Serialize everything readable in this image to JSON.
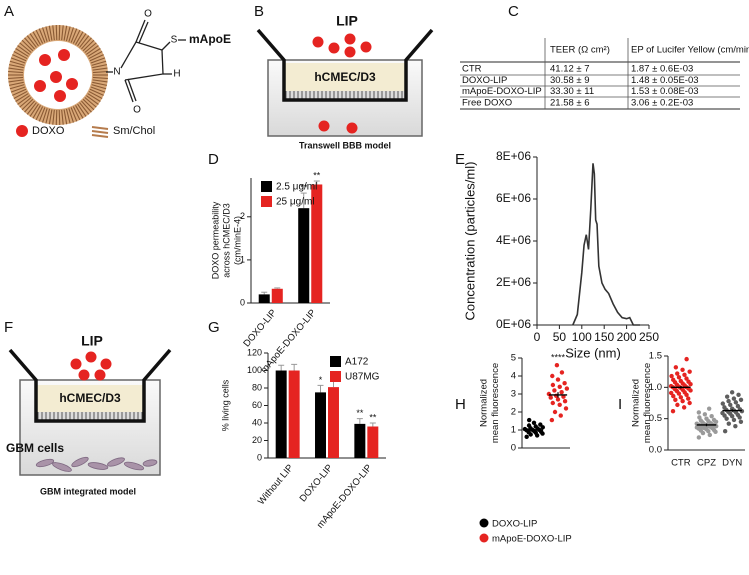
{
  "panels": [
    "A",
    "B",
    "C",
    "D",
    "E",
    "F",
    "G",
    "H",
    "I"
  ],
  "diagram_a": {
    "atoms": [
      "O",
      "N",
      "O",
      "S",
      "H"
    ],
    "ligand": "mApoE",
    "legend": [
      "DOXO",
      "Sm/Chol"
    ]
  },
  "diagram_b": {
    "label": "LIP",
    "cells": "hCMEC/D3",
    "caption": "Transwell BBB model"
  },
  "table": {
    "header": [
      "TEER (Ω cm²)",
      "EP of Lucifer Yellow (cm/min)"
    ],
    "rows": [
      [
        "CTR",
        "41.12 ± 7",
        "1.87 ± 0.6E-03"
      ],
      [
        "DOXO-LIP",
        "30.58 ± 9",
        "1.48 ± 0.05E-03"
      ],
      [
        "mApoE-DOXO-LIP",
        "33.30 ± 11",
        "1.53 ± 0.08E-03"
      ],
      [
        "Free DOXO",
        "21.58 ± 6",
        "3.06 ± 0.2E-03"
      ]
    ]
  },
  "diagram_f": {
    "label": "LIP",
    "cells": "hCMEC/D3",
    "tumor": "GBM cells",
    "caption": "GBM integrated model"
  },
  "chart_data": [
    {
      "type": "bar",
      "ylabel": [
        "DOXO permeability",
        "across hCMEC/D3",
        "(cm/minE-4)"
      ],
      "categories": [
        "DOXO-LIP",
        "mApoE-DOXO-LIP"
      ],
      "series": [
        {
          "name": "2.5 μg/ml",
          "color": "#000000",
          "values": [
            0.2,
            2.2
          ],
          "errors": [
            0.05,
            0.35
          ],
          "significance": [
            null,
            "**"
          ]
        },
        {
          "name": "25 μg/ml",
          "color": "#e52421",
          "values": [
            0.33,
            2.75
          ],
          "errors": [
            0.02,
            0.08
          ],
          "significance": [
            null,
            "**"
          ]
        }
      ],
      "ylim": [
        0,
        2.9
      ],
      "yticks": [
        0,
        1,
        2
      ],
      "legend": "upper left"
    },
    {
      "type": "line",
      "xlabel": "Size (nm)",
      "ylabel": "Concentration (particles/ml)",
      "x": [
        80,
        90,
        100,
        105,
        110,
        115,
        120,
        125,
        128,
        131,
        134,
        138,
        145,
        152,
        160,
        170,
        180,
        190,
        200,
        207,
        215,
        230
      ],
      "series": [
        {
          "color": "#333333",
          "values": [
            0,
            500000,
            2500000,
            3800000,
            4300000,
            3600000,
            5500000,
            7700000,
            7200000,
            5000000,
            4800000,
            2800000,
            2000000,
            1700000,
            1500000,
            1000000,
            600000,
            350000,
            300000,
            350000,
            0,
            0
          ]
        }
      ],
      "xlim": [
        0,
        250
      ],
      "xticks": [
        0,
        50,
        100,
        150,
        200,
        250
      ],
      "ylim": [
        0,
        8000000
      ],
      "yticks": [
        {
          "value": 0,
          "label": "0E+06"
        },
        {
          "value": 2000000,
          "label": "2E+06"
        },
        {
          "value": 4000000,
          "label": "4E+06"
        },
        {
          "value": 6000000,
          "label": "6E+06"
        },
        {
          "value": 8000000,
          "label": "8E+06"
        }
      ]
    },
    {
      "type": "bar",
      "ylabel": [
        "% living cells"
      ],
      "categories": [
        "Without LIP",
        "DOXO-LIP",
        "mApoE-DOXO-LIP"
      ],
      "series": [
        {
          "name": "A172",
          "color": "#000000",
          "values": [
            100,
            75,
            39
          ],
          "errors": [
            6,
            8,
            6
          ],
          "significance": [
            null,
            "*",
            "**"
          ]
        },
        {
          "name": "U87MG",
          "color": "#e52421",
          "values": [
            100,
            81,
            36
          ],
          "errors": [
            7,
            9,
            4
          ],
          "significance": [
            null,
            null,
            "**"
          ]
        }
      ],
      "ylim": [
        0,
        120
      ],
      "yticks": [
        0,
        20,
        40,
        60,
        80,
        100,
        120
      ],
      "legend": "upper right"
    },
    {
      "type": "strip",
      "ylabel": [
        "Normalized",
        "mean fluorescence"
      ],
      "series": [
        {
          "name": "DOXO-LIP",
          "color": "#000000",
          "values": [
            0.62,
            0.7,
            0.75,
            0.8,
            0.85,
            0.88,
            0.9,
            0.95,
            0.98,
            1.0,
            1.02,
            1.05,
            1.08,
            1.1,
            1.15,
            1.2,
            1.25,
            1.3,
            1.4,
            1.55
          ],
          "mean": 1.0,
          "sem": 0.05,
          "significance": null
        },
        {
          "name": "mApoE-DOXO-LIP",
          "color": "#e52421",
          "values": [
            1.55,
            1.8,
            2.0,
            2.2,
            2.4,
            2.5,
            2.6,
            2.7,
            2.8,
            2.85,
            2.9,
            3.0,
            3.1,
            3.2,
            3.3,
            3.4,
            3.5,
            3.6,
            3.8,
            4.0,
            4.2,
            4.6
          ],
          "mean": 2.95,
          "sem": 0.15,
          "significance": "****"
        }
      ],
      "ylim": [
        0,
        5
      ],
      "yticks": [
        0,
        1,
        2,
        3,
        4,
        5
      ],
      "legend": "below"
    },
    {
      "type": "strip",
      "ylabel": [
        "Normalized",
        "mean fluorescence"
      ],
      "categories": [
        "CTR",
        "CPZ",
        "DYN"
      ],
      "series": [
        {
          "color": "#e52421",
          "values": [
            0.62,
            0.68,
            0.72,
            0.75,
            0.78,
            0.8,
            0.82,
            0.84,
            0.86,
            0.88,
            0.9,
            0.91,
            0.92,
            0.94,
            0.95,
            0.96,
            0.97,
            0.98,
            0.99,
            1.0,
            1.0,
            1.01,
            1.02,
            1.03,
            1.04,
            1.05,
            1.06,
            1.08,
            1.09,
            1.1,
            1.12,
            1.14,
            1.16,
            1.18,
            1.2,
            1.22,
            1.25,
            1.28,
            1.32,
            1.45
          ],
          "mean": 1.0,
          "sem": 0.02
        },
        {
          "color": "#9a9a9a",
          "values": [
            0.2,
            0.24,
            0.27,
            0.29,
            0.3,
            0.31,
            0.32,
            0.33,
            0.34,
            0.35,
            0.35,
            0.36,
            0.37,
            0.37,
            0.38,
            0.38,
            0.39,
            0.39,
            0.4,
            0.4,
            0.41,
            0.41,
            0.42,
            0.43,
            0.44,
            0.45,
            0.46,
            0.47,
            0.48,
            0.5,
            0.52,
            0.54,
            0.57,
            0.6,
            0.66
          ],
          "mean": 0.4,
          "sem": 0.02
        },
        {
          "color": "#5e5e5e",
          "values": [
            0.3,
            0.38,
            0.42,
            0.45,
            0.48,
            0.5,
            0.52,
            0.54,
            0.55,
            0.56,
            0.58,
            0.59,
            0.6,
            0.61,
            0.62,
            0.63,
            0.64,
            0.65,
            0.66,
            0.68,
            0.7,
            0.72,
            0.74,
            0.76,
            0.78,
            0.8,
            0.82,
            0.85,
            0.88,
            0.92
          ],
          "mean": 0.63,
          "sem": 0.02
        }
      ],
      "ylim": [
        0,
        1.5
      ],
      "yticks": [
        {
          "value": 0,
          "label": "0.0"
        },
        0.5,
        {
          "value": 1,
          "label": "1.0"
        },
        1.5
      ]
    }
  ]
}
